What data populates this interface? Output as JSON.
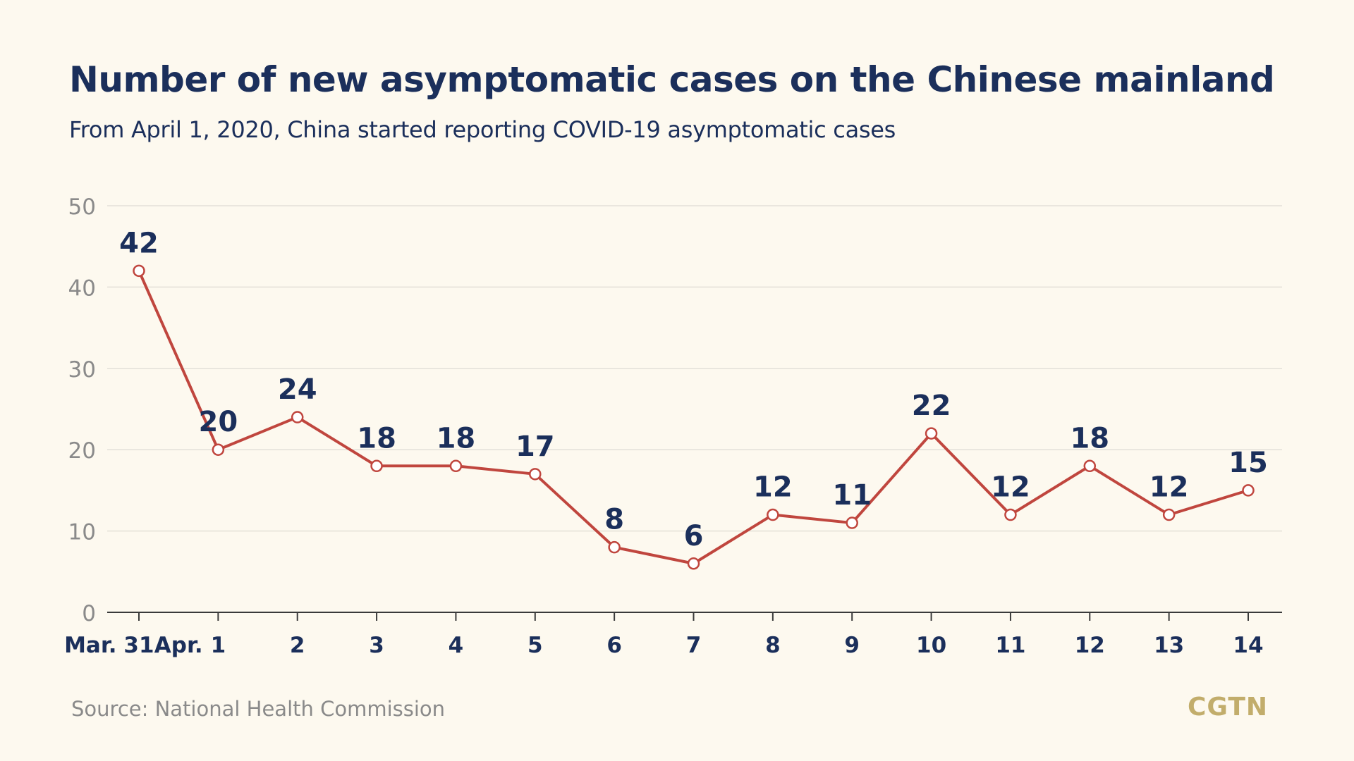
{
  "header": {
    "title": "Number of new asymptomatic cases on the Chinese mainland",
    "subtitle": "From April 1, 2020, China started reporting COVID-19 asymptomatic cases"
  },
  "footer": {
    "source": "Source: National Health Commission",
    "logo_text": "CGTN"
  },
  "colors": {
    "background": "#fdf9ef",
    "title": "#1b2f5b",
    "line": "#c0463e",
    "marker_fill": "#ffffff",
    "gridline": "#e3e0d8",
    "y_tick_label": "#8a8a8a",
    "x_tick_label": "#1b2f5b",
    "data_label": "#1b2f5b",
    "logo": "#c2ad6b"
  },
  "chart_data": {
    "type": "line",
    "x_month_labels": [
      "Mar.",
      "Apr."
    ],
    "categories": [
      "31",
      "1",
      "2",
      "3",
      "4",
      "5",
      "6",
      "7",
      "8",
      "9",
      "10",
      "11",
      "12",
      "13",
      "14"
    ],
    "series": [
      {
        "values": [
          42,
          20,
          24,
          18,
          18,
          17,
          8,
          6,
          12,
          11,
          22,
          12,
          18,
          12,
          15
        ]
      }
    ],
    "ylim": [
      0,
      50
    ],
    "yticks": [
      0,
      10,
      20,
      30,
      40,
      50
    ],
    "grid": true,
    "legend": "none"
  }
}
